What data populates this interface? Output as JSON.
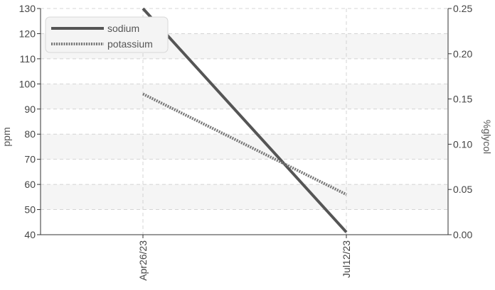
{
  "chart_data": {
    "type": "line",
    "title": "",
    "x": [
      "Apr26/23",
      "Jul12/23"
    ],
    "ylabel": "ppm",
    "y2label": "%glycol",
    "ylim": [
      40,
      130
    ],
    "y2lim": [
      0.0,
      0.25
    ],
    "yticks": [
      "40",
      "50",
      "60",
      "70",
      "80",
      "90",
      "100",
      "110",
      "120",
      "130"
    ],
    "y2ticks": [
      "0.00",
      "0.05",
      "0.10",
      "0.15",
      "0.20",
      "0.25"
    ],
    "grid": true,
    "legend_position": "top-left",
    "series": [
      {
        "name": "sodium",
        "values": [
          130,
          41
        ],
        "color": "#555555",
        "style": "solid"
      },
      {
        "name": "potassium",
        "values": [
          96,
          56
        ],
        "color": "#777777",
        "style": "dotted"
      }
    ]
  }
}
